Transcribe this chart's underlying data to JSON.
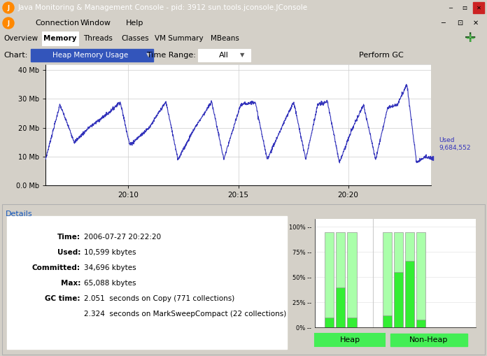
{
  "title": "Java Monitoring & Management Console - pid: 3912 sun.tools.jconsole.JConsole",
  "title_bar_color": "#1c5fb5",
  "title_text_color": "#ffffff",
  "window_bg": "#d4d0c8",
  "details_bg": "#ccc8bc",
  "tab_selected": "Memory",
  "tabs": [
    "Overview",
    "Memory",
    "Threads",
    "Classes",
    "VM Summary",
    "MBeans"
  ],
  "chart_label": "Heap Memory Usage",
  "time_range_label": "All",
  "chart_bg": "#ffffff",
  "chart_line_color": "#3333bb",
  "y_ticks_labels": [
    "0.0 Mb",
    "10 Mb",
    "20 Mb",
    "30 Mb",
    "40 Mb"
  ],
  "y_ticks_vals": [
    0,
    10,
    20,
    30,
    40
  ],
  "x_ticks_labels": [
    "20:10",
    "20:15",
    "20:20"
  ],
  "x_ticks_pos": [
    0.215,
    0.5,
    0.785
  ],
  "info_time": "2006-07-27 20:22:20",
  "info_used": "10,599 kbytes",
  "info_committed": "34,696 kbytes",
  "info_max": "65,088 kbytes",
  "info_gc1": "2.051  seconds on Copy (771 collections)",
  "info_gc2": "2.324  seconds on MarkSweepCompact (22 collections)",
  "heap_bars_used": [
    0.1,
    0.4,
    0.1
  ],
  "heap_bars_committed": [
    0.95,
    0.95,
    0.95
  ],
  "nonheap_bars_used": [
    0.12,
    0.55,
    0.66,
    0.08
  ],
  "nonheap_bars_committed": [
    0.95,
    0.95,
    0.95,
    0.95
  ],
  "bar_used_color": "#33ee33",
  "bar_committed_color": "#aaffaa",
  "perform_gc_btn": "Perform GC",
  "menu_items": [
    "Connection",
    "Window",
    "Help"
  ],
  "chart_x_pts": [
    0,
    30,
    60,
    90,
    130,
    155,
    175,
    215,
    250,
    275,
    310,
    345,
    370,
    405,
    435,
    460,
    490,
    515,
    540,
    565,
    585,
    610,
    635,
    660,
    685,
    710,
    730,
    750,
    770,
    790,
    800
  ],
  "chart_y_pts": [
    9,
    28,
    15,
    20,
    25,
    29,
    14,
    20,
    29,
    9,
    20,
    29,
    9,
    28,
    29,
    9,
    20,
    29,
    9,
    28,
    29,
    8,
    19,
    28,
    9,
    27,
    28,
    35,
    8,
    10,
    9.5
  ]
}
